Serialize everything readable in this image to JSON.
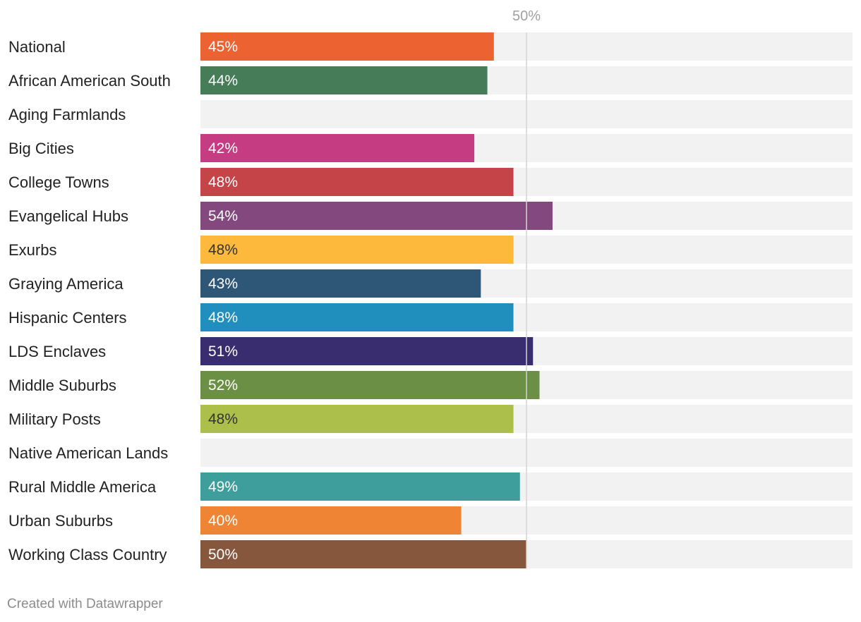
{
  "chart_data": {
    "type": "bar",
    "orientation": "horizontal",
    "xlim": [
      0,
      100
    ],
    "reference_line": {
      "value": 50,
      "label": "50%"
    },
    "value_suffix": "%",
    "categories": [
      "National",
      "African American South",
      "Aging Farmlands",
      "Big Cities",
      "College Towns",
      "Evangelical Hubs",
      "Exurbs",
      "Graying America",
      "Hispanic Centers",
      "LDS Enclaves",
      "Middle Suburbs",
      "Military Posts",
      "Native American Lands",
      "Rural Middle America",
      "Urban Suburbs",
      "Working Class Country"
    ],
    "values": [
      45,
      44,
      null,
      42,
      48,
      54,
      48,
      43,
      48,
      51,
      52,
      48,
      null,
      49,
      40,
      50
    ],
    "colors": [
      "#ec6231",
      "#467c58",
      "#cccccc",
      "#c53c83",
      "#c44448",
      "#83497f",
      "#fdb93b",
      "#2e5676",
      "#218fbd",
      "#3a2d6f",
      "#6b9045",
      "#abbf4a",
      "#cccccc",
      "#3d9e9b",
      "#ef8434",
      "#86573d"
    ],
    "label_colors": [
      "#ffffff",
      "#ffffff",
      "#ffffff",
      "#ffffff",
      "#ffffff",
      "#ffffff",
      "#333333",
      "#ffffff",
      "#ffffff",
      "#ffffff",
      "#ffffff",
      "#333333",
      "#ffffff",
      "#ffffff",
      "#ffffff",
      "#ffffff"
    ],
    "background_bar_color": "#f2f2f2",
    "reference_line_color": "#d4d4d4"
  },
  "footer": {
    "credit": "Created with Datawrapper"
  }
}
